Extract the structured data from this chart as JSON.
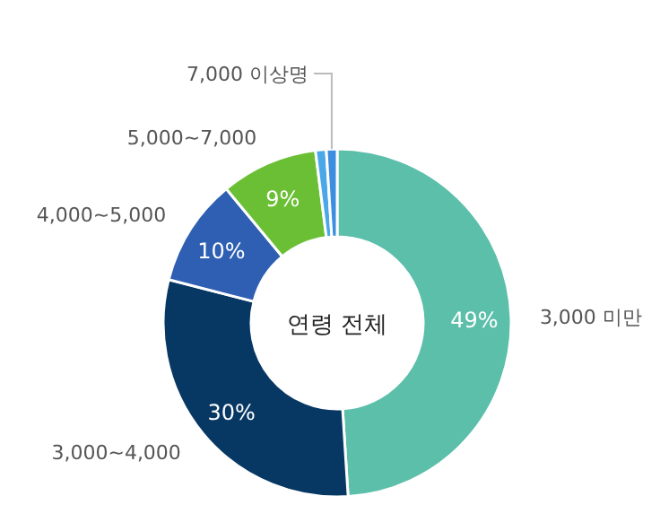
{
  "chart_data": {
    "type": "donut",
    "title": "연령 전체",
    "categories": [
      "3,000 미만",
      "3,000~4,000",
      "4,000~5,000",
      "5,000~7,000",
      null,
      "7,000 이상명"
    ],
    "values": [
      49,
      30,
      10,
      9,
      1,
      1
    ],
    "value_labels": [
      "49%",
      "30%",
      "10%",
      "9%",
      null,
      null
    ],
    "colors": [
      "#5bbfaa",
      "#073763",
      "#2f5fb3",
      "#6bbf35",
      "#4aa8e8",
      "#3d8ee0"
    ],
    "legend": false
  }
}
